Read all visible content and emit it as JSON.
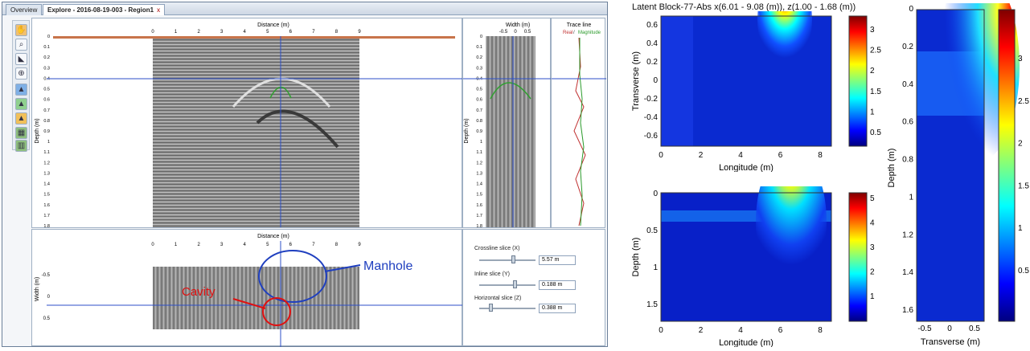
{
  "tabs": [
    {
      "label": "Overview"
    },
    {
      "label": "Explore - 2016-08-19-003 - Region1",
      "close": "x"
    }
  ],
  "toolbar_icons": [
    "hand-icon",
    "zoom-icon",
    "measure-icon",
    "zoom-region-icon",
    "layer-1-icon",
    "layer-2-icon",
    "layer-3-icon",
    "grid-1-icon",
    "grid-2-icon"
  ],
  "main_bscan": {
    "title": "Distance (m)",
    "ylabel": "Depth (m)",
    "xticks": [
      "0",
      "1",
      "2",
      "3",
      "4",
      "5",
      "6",
      "7",
      "8",
      "9"
    ],
    "yticks": [
      "0",
      "0.1",
      "0.2",
      "0.3",
      "0.4",
      "0.5",
      "0.6",
      "0.7",
      "0.8",
      "0.9",
      "1",
      "1.1",
      "1.2",
      "1.3",
      "1.4",
      "1.5",
      "1.6",
      "1.7",
      "1.8"
    ]
  },
  "width_panel": {
    "title": "Width (m)",
    "ylabel": "Depth (m)",
    "xticks": [
      "-0.5",
      "0",
      "0.5"
    ],
    "yticks": [
      "0",
      "0.1",
      "0.2",
      "0.3",
      "0.4",
      "0.5",
      "0.6",
      "0.7",
      "0.8",
      "0.9",
      "1",
      "1.1",
      "1.2",
      "1.3",
      "1.4",
      "1.5",
      "1.6",
      "1.7",
      "1.8"
    ]
  },
  "trace_panel": {
    "title": "Trace line",
    "legend_real": "Real",
    "legend_sep": " / ",
    "legend_mag": "Magnitude"
  },
  "slice_panel": {
    "title": "Distance (m)",
    "ylabel": "Width (m)",
    "xticks": [
      "0",
      "1",
      "2",
      "3",
      "4",
      "5",
      "6",
      "7",
      "8",
      "9"
    ],
    "yticks": [
      "-0.5",
      "0",
      "0.5"
    ]
  },
  "annotations": {
    "manhole": "Manhole",
    "cavity": "Cavity"
  },
  "controls": {
    "crossline_label": "Crossline slice (X)",
    "crossline_value": "5.57 m",
    "inline_label": "Inline slice (Y)",
    "inline_value": "0.188 m",
    "horizontal_label": "Horizontal slice (Z)",
    "horizontal_value": "0.388 m"
  },
  "plot_top": {
    "title": "Latent Block-77-Abs x(6.01 - 9.08 (m)), z(1.00 - 1.68 (m))",
    "xlabel": "Longitude (m)",
    "ylabel": "Transverse (m)",
    "xticks": [
      "0",
      "2",
      "4",
      "6",
      "8"
    ],
    "yticks": [
      "0.6",
      "0.4",
      "0.2",
      "0",
      "-0.2",
      "-0.4",
      "-0.6"
    ],
    "cbar": [
      "3",
      "2.5",
      "2",
      "1.5",
      "1",
      "0.5"
    ]
  },
  "plot_bottom": {
    "xlabel": "Longitude (m)",
    "ylabel": "Depth (m)",
    "xticks": [
      "0",
      "2",
      "4",
      "6",
      "8"
    ],
    "yticks": [
      "0",
      "0.5",
      "1",
      "1.5"
    ],
    "cbar": [
      "5",
      "4",
      "3",
      "2",
      "1"
    ]
  },
  "plot_right": {
    "xlabel": "Transverse (m)",
    "ylabel": "Depth (m)",
    "xticks": [
      "-0.5",
      "0",
      "0.5"
    ],
    "yticks": [
      "0",
      "0.2",
      "0.4",
      "0.6",
      "0.8",
      "1",
      "1.2",
      "1.4",
      "1.6"
    ],
    "cbar": [
      "3",
      "2.5",
      "2",
      "1.5",
      "1",
      "0.5"
    ]
  },
  "colors": {
    "accent_blue": "#1f3fbf",
    "annotation_red": "#e01010",
    "jet_dark": "#00008f"
  }
}
